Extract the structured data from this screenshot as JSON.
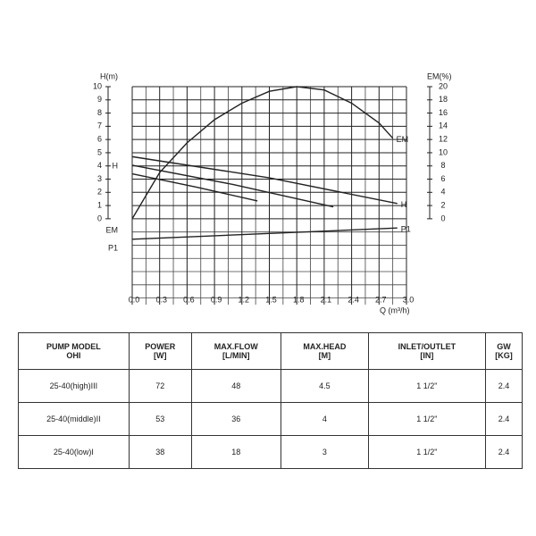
{
  "chart_data": {
    "type": "line",
    "y_label": "H(m)",
    "y2_label": "EM(%)",
    "x_label": "Q (m³/h)",
    "xlim": [
      0,
      3
    ],
    "xticks": [
      {
        "value": 0,
        "label": "0.0"
      },
      0.3,
      0.6,
      0.9,
      1.2,
      1.5,
      1.8,
      2.1,
      2.4,
      2.7,
      {
        "value": 3,
        "label": "3.0"
      }
    ],
    "ylim": [
      -6.5,
      10
    ],
    "yticks": [
      0,
      1,
      2,
      3,
      4,
      5,
      6,
      7,
      8,
      9,
      10
    ],
    "y2lim": [
      -13,
      20
    ],
    "y2ticks": [
      0,
      2,
      4,
      6,
      8,
      10,
      12,
      14,
      16,
      18,
      20
    ],
    "grid": true,
    "annotations": [
      "H",
      "EM",
      "P1"
    ],
    "series": [
      {
        "name": "H",
        "color": "#222",
        "x": [
          0,
          1.5,
          2.9
        ],
        "values": [
          4.7,
          3.1,
          1.15
        ]
      },
      {
        "color": "#222",
        "x": [
          0,
          1.1,
          2.2
        ],
        "values": [
          4.05,
          2.6,
          0.9
        ]
      },
      {
        "color": "#222",
        "x": [
          0,
          0.7,
          1.37
        ],
        "values": [
          3.4,
          2.4,
          1.35
        ]
      },
      {
        "name": "EM",
        "color": "#222",
        "axis": "y2",
        "x": [
          0,
          0.3,
          0.6,
          0.9,
          1.2,
          1.5,
          1.8,
          2.1,
          2.4,
          2.7,
          2.85
        ],
        "values": [
          0,
          7,
          11.5,
          15,
          17.5,
          19.3,
          20,
          19.5,
          17.5,
          14.5,
          12.2
        ]
      },
      {
        "name": "P1",
        "color": "#222",
        "x": [
          0,
          2.9
        ],
        "values": [
          -1.55,
          -0.7
        ]
      }
    ]
  },
  "table": {
    "header": [
      "PUMP MODEL\nOHI",
      "POWER\n[W]",
      "MAX.FLOW\n[L/MIN]",
      "MAX.HEAD\n[M]",
      "INLET/OUTLET\n[IN]",
      "GW\n[KG]"
    ],
    "rows": [
      [
        "25-40(high)III",
        "72",
        "48",
        "4.5",
        "1 1/2\"",
        "2.4"
      ],
      [
        "25-40(middle)II",
        "53",
        "36",
        "4",
        "1 1/2\"",
        "2.4"
      ],
      [
        "25-40(low)I",
        "38",
        "18",
        "3",
        "1 1/2\"",
        "2.4"
      ]
    ]
  }
}
